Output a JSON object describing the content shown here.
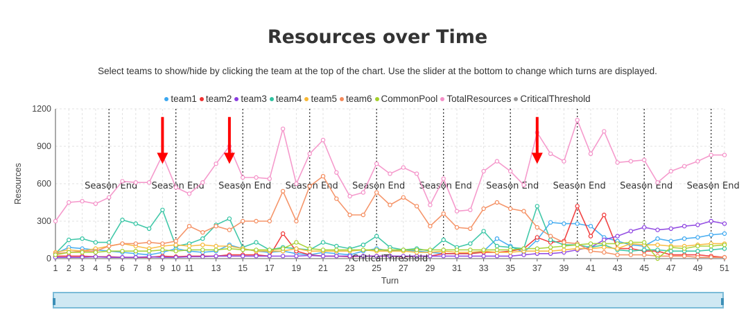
{
  "header": {
    "title": "Resources over Time",
    "subtitle": "Select teams to show/hide by clicking the team at the top of the chart. Use the slider at the bottom to change which turns are displayed."
  },
  "chart_data": {
    "type": "line",
    "title": "Resources over Time",
    "xlabel": "Turn",
    "ylabel": "Resources",
    "ylim": [
      0,
      1200
    ],
    "xlim": [
      1,
      51
    ],
    "y_ticks": [
      0,
      300,
      600,
      900,
      1200
    ],
    "x_ticks": [
      1,
      2,
      3,
      4,
      5,
      6,
      7,
      8,
      9,
      10,
      11,
      13,
      15,
      17,
      19,
      21,
      23,
      25,
      27,
      29,
      31,
      33,
      35,
      37,
      39,
      41,
      43,
      45,
      47,
      49,
      51
    ],
    "grid": true,
    "legend_position": "top",
    "season_label": "Season End",
    "season_end_turns": [
      5,
      10,
      15,
      20,
      25,
      30,
      35,
      40,
      45,
      50
    ],
    "threshold_label": "CriticalThreshold",
    "annotation_arrow_turns": [
      9,
      14,
      37
    ],
    "annotation_color": "#ff0000",
    "x": [
      1,
      2,
      3,
      4,
      5,
      6,
      7,
      8,
      9,
      10,
      11,
      12,
      13,
      14,
      15,
      16,
      17,
      18,
      19,
      20,
      21,
      22,
      23,
      24,
      25,
      26,
      27,
      28,
      29,
      30,
      31,
      32,
      33,
      34,
      35,
      36,
      37,
      38,
      39,
      40,
      41,
      42,
      43,
      44,
      45,
      46,
      47,
      48,
      49,
      50,
      51
    ],
    "series": [
      {
        "name": "team1",
        "color": "#3ba7f0",
        "values": [
          40,
          90,
          80,
          70,
          60,
          50,
          40,
          30,
          50,
          80,
          60,
          50,
          60,
          110,
          80,
          60,
          50,
          60,
          40,
          30,
          50,
          40,
          30,
          60,
          80,
          60,
          70,
          60,
          50,
          40,
          40,
          40,
          60,
          160,
          100,
          50,
          150,
          290,
          280,
          280,
          260,
          170,
          140,
          110,
          100,
          160,
          140,
          160,
          170,
          190,
          200
        ]
      },
      {
        "name": "team2",
        "color": "#f03030",
        "values": [
          20,
          20,
          20,
          15,
          15,
          10,
          10,
          10,
          20,
          15,
          20,
          20,
          20,
          30,
          30,
          30,
          20,
          200,
          60,
          30,
          20,
          20,
          15,
          20,
          20,
          20,
          15,
          20,
          20,
          40,
          40,
          40,
          50,
          50,
          60,
          80,
          170,
          130,
          140,
          420,
          180,
          350,
          80,
          80,
          60,
          60,
          30,
          30,
          30,
          20,
          10
        ]
      },
      {
        "name": "team3",
        "color": "#8a3de0",
        "values": [
          10,
          10,
          10,
          15,
          10,
          10,
          10,
          15,
          10,
          10,
          15,
          15,
          20,
          20,
          20,
          20,
          20,
          20,
          20,
          25,
          20,
          20,
          20,
          20,
          20,
          20,
          20,
          20,
          20,
          20,
          20,
          20,
          20,
          20,
          20,
          30,
          40,
          40,
          50,
          70,
          90,
          150,
          180,
          220,
          250,
          230,
          240,
          260,
          270,
          300,
          280
        ]
      },
      {
        "name": "team4",
        "color": "#2dc2a0",
        "values": [
          40,
          150,
          160,
          130,
          130,
          310,
          280,
          240,
          390,
          100,
          120,
          160,
          270,
          320,
          90,
          130,
          70,
          90,
          80,
          70,
          130,
          100,
          80,
          110,
          180,
          90,
          70,
          80,
          60,
          150,
          90,
          120,
          220,
          100,
          90,
          80,
          420,
          150,
          110,
          110,
          90,
          110,
          70,
          60,
          70,
          70,
          60,
          60,
          60,
          70,
          80
        ]
      },
      {
        "name": "team5",
        "color": "#f7b733",
        "values": [
          50,
          70,
          60,
          80,
          100,
          120,
          100,
          80,
          100,
          110,
          100,
          110,
          100,
          100,
          80,
          60,
          60,
          60,
          80,
          60,
          60,
          60,
          60,
          70,
          60,
          60,
          60,
          50,
          50,
          60,
          50,
          50,
          60,
          50,
          50,
          60,
          60,
          60,
          70,
          80,
          80,
          90,
          80,
          120,
          110,
          110,
          100,
          100,
          110,
          120,
          120
        ]
      },
      {
        "name": "team6",
        "color": "#f4895a",
        "values": [
          40,
          50,
          60,
          60,
          100,
          120,
          120,
          130,
          120,
          140,
          260,
          210,
          260,
          230,
          300,
          300,
          300,
          540,
          300,
          580,
          660,
          480,
          350,
          350,
          530,
          430,
          490,
          420,
          260,
          360,
          250,
          240,
          400,
          450,
          400,
          380,
          250,
          180,
          130,
          120,
          60,
          50,
          30,
          30,
          30,
          20,
          20,
          20,
          10,
          10,
          10
        ]
      },
      {
        "name": "CommonPool",
        "color": "#a4cf2b",
        "values": [
          30,
          50,
          50,
          50,
          60,
          60,
          60,
          60,
          70,
          60,
          70,
          70,
          70,
          80,
          70,
          70,
          70,
          80,
          130,
          80,
          70,
          70,
          70,
          70,
          70,
          70,
          70,
          70,
          70,
          70,
          70,
          70,
          70,
          70,
          70,
          80,
          80,
          90,
          100,
          110,
          120,
          120,
          120,
          130,
          130,
          0,
          90,
          80,
          100,
          100,
          110
        ]
      },
      {
        "name": "TotalResources",
        "color": "#f48fc7",
        "values": [
          300,
          450,
          460,
          440,
          490,
          620,
          610,
          610,
          830,
          570,
          520,
          610,
          760,
          900,
          650,
          650,
          640,
          1040,
          600,
          840,
          950,
          690,
          500,
          530,
          760,
          680,
          730,
          680,
          430,
          640,
          380,
          390,
          700,
          780,
          700,
          590,
          1010,
          840,
          780,
          1110,
          840,
          1020,
          770,
          780,
          790,
          610,
          700,
          740,
          780,
          830,
          830
        ]
      },
      {
        "name": "CriticalThreshold",
        "color": "#999999",
        "values": [
          0,
          0,
          0,
          0,
          0,
          0,
          0,
          0,
          0,
          0,
          0,
          0,
          0,
          0,
          0,
          0,
          0,
          0,
          0,
          0,
          0,
          0,
          0,
          0,
          0,
          0,
          0,
          0,
          0,
          0,
          0,
          0,
          0,
          0,
          0,
          0,
          0,
          0,
          0,
          0,
          0,
          0,
          0,
          0,
          0,
          0,
          0,
          0,
          0,
          0,
          0
        ]
      }
    ]
  }
}
